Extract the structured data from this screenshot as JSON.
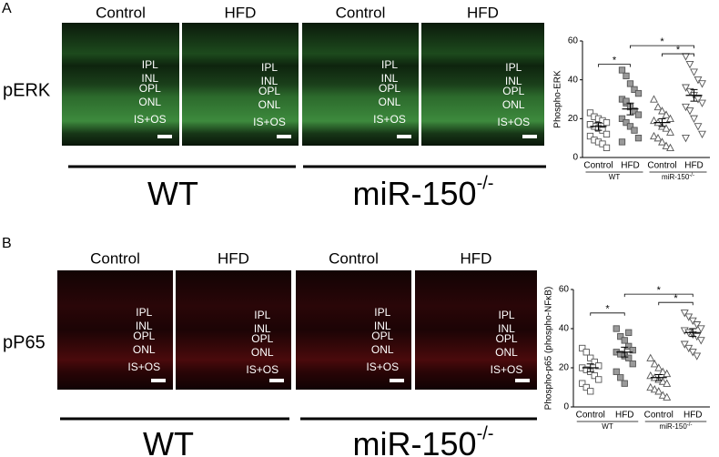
{
  "figure": {
    "panels": [
      {
        "label": "A",
        "stain": "pERK",
        "columns": [
          "Control",
          "HFD",
          "Control",
          "HFD"
        ],
        "layers": [
          "IPL",
          "INL",
          "OPL",
          "ONL",
          "IS+OS"
        ],
        "groups": [
          {
            "label": "WT"
          },
          {
            "label": "miR-150",
            "sup": "-/-"
          }
        ]
      },
      {
        "label": "B",
        "stain": "pP65",
        "columns": [
          "Control",
          "HFD",
          "Control",
          "HFD"
        ],
        "layers": [
          "IPL",
          "INL",
          "OPL",
          "ONL",
          "IS+OS"
        ],
        "groups": [
          {
            "label": "WT"
          },
          {
            "label": "miR-150",
            "sup": "-/-"
          }
        ]
      }
    ]
  },
  "chart_data": [
    {
      "type": "scatter",
      "y_label": "Phospho-ERK",
      "categories": [
        "Control",
        "HFD",
        "Control",
        "HFD"
      ],
      "groups": [
        {
          "label": "WT"
        },
        {
          "label": "miR-150",
          "sup": "-/-"
        }
      ],
      "ylim": [
        0,
        60
      ],
      "yticks": [
        0,
        20,
        40,
        60
      ],
      "points": [
        [
          23,
          21,
          20,
          19,
          18,
          17,
          16,
          15,
          14,
          12,
          11,
          9,
          8,
          7,
          5,
          17
        ],
        [
          45,
          42,
          38,
          35,
          33,
          30,
          28,
          26,
          24,
          22,
          20,
          18,
          16,
          14,
          10,
          8,
          29
        ],
        [
          30,
          26,
          24,
          22,
          20,
          19,
          18,
          16,
          15,
          13,
          11,
          10,
          8,
          6,
          5
        ],
        [
          52,
          48,
          44,
          40,
          38,
          36,
          34,
          32,
          30,
          28,
          26,
          24,
          20,
          16,
          12,
          10
        ]
      ],
      "markers": [
        "square",
        "square",
        "triangle",
        "triangle-down"
      ],
      "fills": [
        "#ffffff",
        "#9a9a9a",
        "#ffffff",
        "#ffffff"
      ],
      "means": [
        16,
        25,
        18,
        32
      ],
      "sems": [
        2,
        3,
        2,
        3
      ],
      "significance": [
        {
          "from": 0,
          "to": 1,
          "label": "*"
        },
        {
          "from": 1,
          "to": 3,
          "label": "*"
        },
        {
          "from": 2,
          "to": 3,
          "label": "*"
        }
      ]
    },
    {
      "type": "scatter",
      "y_label": "Phospho-p65 (phospho-NFκB)",
      "categories": [
        "Control",
        "HFD",
        "Control",
        "HFD"
      ],
      "groups": [
        {
          "label": "WT"
        },
        {
          "label": "miR-150",
          "sup": "-/-"
        }
      ],
      "ylim": [
        0,
        60
      ],
      "yticks": [
        0,
        20,
        40,
        60
      ],
      "points": [
        [
          30,
          28,
          25,
          23,
          21,
          20,
          19,
          18,
          16,
          14,
          12,
          10,
          8
        ],
        [
          40,
          36,
          34,
          31,
          29,
          28,
          27,
          26,
          25,
          22,
          18,
          15,
          12,
          38
        ],
        [
          25,
          22,
          20,
          18,
          17,
          16,
          15,
          14,
          13,
          12,
          10,
          9,
          8,
          6,
          5
        ],
        [
          48,
          46,
          44,
          42,
          40,
          39,
          38,
          37,
          36,
          34,
          32,
          30,
          28,
          26
        ]
      ],
      "markers": [
        "square",
        "square",
        "triangle",
        "triangle-down"
      ],
      "fills": [
        "#ffffff",
        "#9a9a9a",
        "#ffffff",
        "#ffffff"
      ],
      "means": [
        20,
        28,
        15,
        38
      ],
      "sems": [
        2,
        2.5,
        1.5,
        2
      ],
      "significance": [
        {
          "from": 0,
          "to": 1,
          "label": "*"
        },
        {
          "from": 1,
          "to": 3,
          "label": "*"
        },
        {
          "from": 2,
          "to": 3,
          "label": "*"
        }
      ]
    }
  ]
}
